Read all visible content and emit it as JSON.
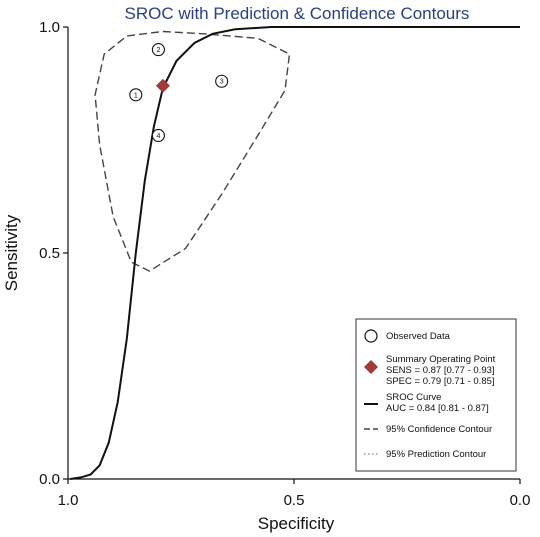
{
  "chart_data": {
    "type": "scatter",
    "title": "SROC with Prediction & Confidence Contours",
    "xlabel": "Specificity",
    "ylabel": "Sensitivity",
    "x_reversed": true,
    "xlim": [
      1.0,
      0.0
    ],
    "ylim": [
      0.0,
      1.0
    ],
    "x_ticks": [
      {
        "value": 1.0,
        "label": "1.0"
      },
      {
        "value": 0.5,
        "label": "0.5"
      },
      {
        "value": 0.0,
        "label": "0.0"
      }
    ],
    "y_ticks": [
      {
        "value": 0.0,
        "label": "0.0"
      },
      {
        "value": 0.5,
        "label": "0.5"
      },
      {
        "value": 1.0,
        "label": "1.0"
      }
    ],
    "grid": false,
    "legend_position": "bottom-right",
    "observed_data": [
      {
        "study": "1",
        "specificity": 0.85,
        "sensitivity": 0.85
      },
      {
        "study": "2",
        "specificity": 0.8,
        "sensitivity": 0.95
      },
      {
        "study": "3",
        "specificity": 0.66,
        "sensitivity": 0.88
      },
      {
        "study": "4",
        "specificity": 0.8,
        "sensitivity": 0.76
      }
    ],
    "summary_point": {
      "specificity": 0.79,
      "sensitivity": 0.87,
      "color": "#a33a3a"
    },
    "sroc_curve": [
      {
        "specificity": 0.995,
        "sensitivity": 0.0
      },
      {
        "specificity": 0.97,
        "sensitivity": 0.004
      },
      {
        "specificity": 0.95,
        "sensitivity": 0.01
      },
      {
        "specificity": 0.93,
        "sensitivity": 0.03
      },
      {
        "specificity": 0.91,
        "sensitivity": 0.08
      },
      {
        "specificity": 0.89,
        "sensitivity": 0.17
      },
      {
        "specificity": 0.87,
        "sensitivity": 0.31
      },
      {
        "specificity": 0.85,
        "sensitivity": 0.5
      },
      {
        "specificity": 0.83,
        "sensitivity": 0.66
      },
      {
        "specificity": 0.81,
        "sensitivity": 0.78
      },
      {
        "specificity": 0.79,
        "sensitivity": 0.865
      },
      {
        "specificity": 0.76,
        "sensitivity": 0.925
      },
      {
        "specificity": 0.72,
        "sensitivity": 0.965
      },
      {
        "specificity": 0.68,
        "sensitivity": 0.985
      },
      {
        "specificity": 0.63,
        "sensitivity": 0.995
      },
      {
        "specificity": 0.55,
        "sensitivity": 1.0
      },
      {
        "specificity": 0.0,
        "sensitivity": 1.0
      }
    ],
    "prediction_contour": [
      {
        "specificity": 0.79,
        "sensitivity": 0.99
      },
      {
        "specificity": 0.7,
        "sensitivity": 0.985
      },
      {
        "specificity": 0.58,
        "sensitivity": 0.975
      },
      {
        "specificity": 0.51,
        "sensitivity": 0.94
      },
      {
        "specificity": 0.52,
        "sensitivity": 0.86
      },
      {
        "specificity": 0.58,
        "sensitivity": 0.76
      },
      {
        "specificity": 0.66,
        "sensitivity": 0.63
      },
      {
        "specificity": 0.74,
        "sensitivity": 0.51
      },
      {
        "specificity": 0.82,
        "sensitivity": 0.46
      },
      {
        "specificity": 0.86,
        "sensitivity": 0.48
      },
      {
        "specificity": 0.9,
        "sensitivity": 0.58
      },
      {
        "specificity": 0.93,
        "sensitivity": 0.74
      },
      {
        "specificity": 0.94,
        "sensitivity": 0.85
      },
      {
        "specificity": 0.92,
        "sensitivity": 0.94
      },
      {
        "specificity": 0.87,
        "sensitivity": 0.98
      },
      {
        "specificity": 0.79,
        "sensitivity": 0.99
      }
    ],
    "legend": {
      "observed_label": "Observed Data",
      "summary_label": "Summary Operating Point",
      "sens_label": "SENS = 0.87 [0.77 - 0.93]",
      "spec_label": "SPEC = 0.79 [0.71 - 0.85]",
      "sroc_label": "SROC Curve",
      "auc_label": "AUC = 0.84 [0.81 - 0.87]",
      "confidence_label": "95% Confidence Contour",
      "prediction_label": "95% Prediction Contour"
    }
  }
}
